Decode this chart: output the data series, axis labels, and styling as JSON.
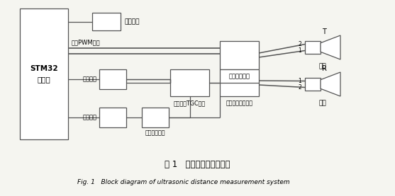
{
  "title_cn": "图 1   超声波测距系统框图",
  "title_en": "Fig. 1   Block diagram of ultrasonic distance measurement system",
  "background_color": "#f5f5f0",
  "line_color": "#555555",
  "box_fill": "#ffffff",
  "text_color": "#000000",
  "stm32_label1": "STM32",
  "stm32_label2": "单片机",
  "temp_label": "测温电路",
  "capture1_label": "输入捕捉",
  "capture2_label": "输入捕捉",
  "drive_label": "发射驱动电路",
  "amplify_label": "放大电路TGC电路",
  "filter_label": "一级放大滤波电路",
  "compare_label": "比较整形电路",
  "pwm_label": "互补PWM输出",
  "tx_label": "发射",
  "rx_label": "接收",
  "tx_letter": "T",
  "rx_letter": "R",
  "num_2_top": "2",
  "num_1_tx": "1",
  "num_1_rx": "1",
  "num_2_rx": "2"
}
